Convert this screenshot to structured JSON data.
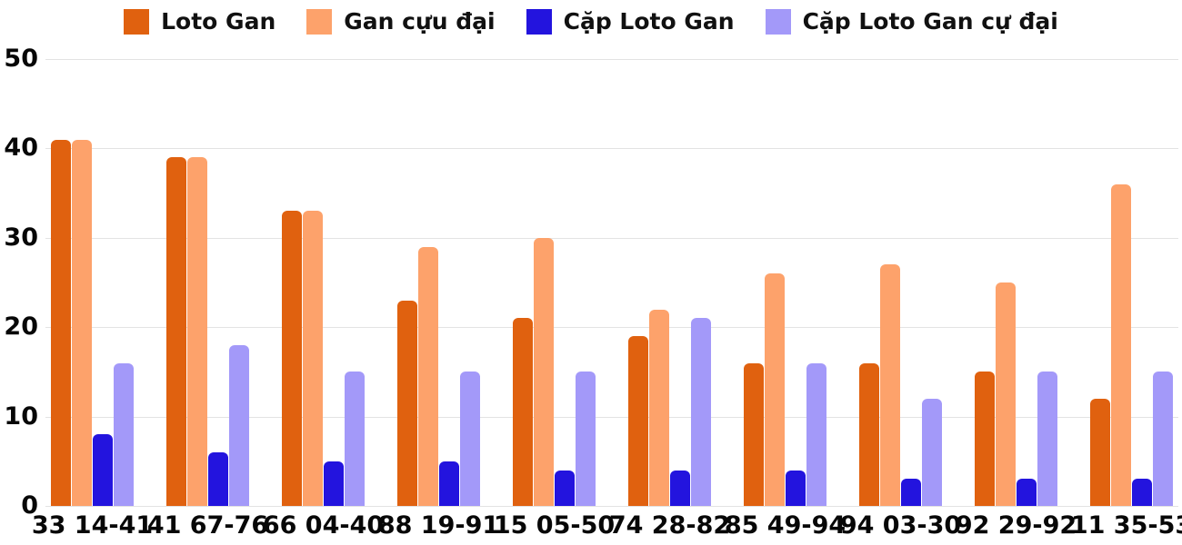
{
  "chart_data": {
    "type": "bar",
    "title": "",
    "xlabel": "",
    "ylabel": "",
    "categories": [
      "33 14-41",
      "41 67-76",
      "66 04-40",
      "88 19-91",
      "15 05-50",
      "74 28-82",
      "85 49-94",
      "94 03-30",
      "92 29-92",
      "11 35-53"
    ],
    "series": [
      {
        "name": "Loto Gan",
        "color": "#E0610F",
        "values": [
          41,
          39,
          33,
          23,
          21,
          19,
          16,
          16,
          15,
          12
        ]
      },
      {
        "name": "Gan cựu đại",
        "color": "#FDA26B",
        "values": [
          41,
          39,
          33,
          29,
          30,
          22,
          26,
          27,
          25,
          36
        ]
      },
      {
        "name": "Cặp Loto Gan",
        "color": "#2314DE",
        "values": [
          8,
          6,
          5,
          5,
          4,
          4,
          4,
          3,
          3,
          3
        ]
      },
      {
        "name": "Cặp Loto Gan cự đại",
        "color": "#A399F9",
        "values": [
          16,
          18,
          15,
          15,
          15,
          21,
          16,
          12,
          15,
          15
        ]
      }
    ],
    "ylim": [
      0,
      50
    ],
    "yticks": [
      0,
      10,
      20,
      30,
      40,
      50
    ],
    "grid": true,
    "legend_position": "top",
    "colors": {
      "grid": "#e3e3e3",
      "text": "#070707",
      "background": "#ffffff"
    }
  }
}
